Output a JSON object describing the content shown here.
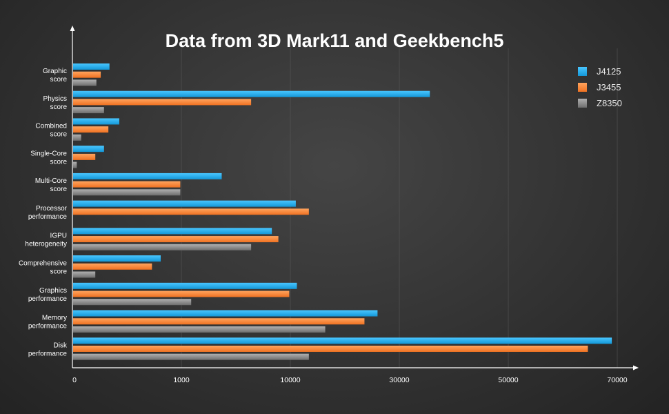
{
  "chart_data": {
    "type": "bar",
    "orientation": "horizontal",
    "title": "Data from 3D Mark11 and Geekbench5",
    "xlabel": "",
    "ylabel": "",
    "categories": [
      "Graphic score",
      "Physics score",
      "Combined score",
      "Single-Core score",
      "Multi-Core score",
      "Processor performance",
      "IGPU heterogeneity",
      "Comprehensive score",
      "Graphics performance",
      "Memory performance",
      "Disk performance"
    ],
    "x_ticks": [
      "0",
      "1000",
      "10000",
      "30000",
      "50000",
      "70000"
    ],
    "x_tick_note": "tick labels are printed at equal spacing; bar values below are expressed as position on the printed axis scale (0 = first tick, 5 = last tick)",
    "series": [
      {
        "name": "J4125",
        "color": "#1aaef0",
        "values": [
          0.34,
          3.28,
          0.43,
          0.29,
          1.37,
          2.05,
          1.83,
          0.81,
          2.06,
          2.8,
          4.95
        ]
      },
      {
        "name": "J3455",
        "color": "#ff8a33",
        "values": [
          0.26,
          1.64,
          0.33,
          0.21,
          0.99,
          2.17,
          1.89,
          0.73,
          1.99,
          2.68,
          4.73
        ]
      },
      {
        "name": "Z8350",
        "color": "#8c8c8c",
        "values": [
          0.22,
          0.29,
          0.08,
          0.04,
          0.99,
          0,
          1.64,
          0.21,
          1.09,
          2.32,
          2.17
        ]
      }
    ],
    "xlim": [
      0,
      5
    ],
    "grid": true,
    "legend_position": "top-right"
  }
}
